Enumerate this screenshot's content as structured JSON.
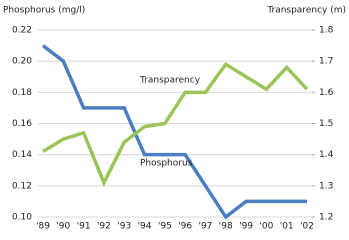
{
  "chart_data": {
    "type": "line",
    "y_label": "Phosphorus (mg/l)",
    "y2_label": "Transparency (m)",
    "categories": [
      "'89",
      "'90",
      "'91",
      "'92",
      "'93",
      "'94",
      "'95",
      "'96",
      "'97",
      "'98",
      "'99",
      "'00",
      "'01",
      "'02"
    ],
    "series": [
      {
        "name": "Phosphorus",
        "color": "#4a7fc1",
        "values": [
          0.21,
          0.2,
          0.17,
          0.17,
          0.17,
          0.14,
          0.14,
          0.14,
          0.12,
          0.1,
          0.11,
          0.11,
          0.11,
          0.11
        ]
      },
      {
        "name": "Transparency",
        "color": "#9bc45a",
        "axis": "y2",
        "values": [
          1.41,
          1.45,
          1.47,
          1.31,
          1.44,
          1.49,
          1.5,
          1.6,
          1.6,
          1.69,
          1.65,
          1.61,
          1.68,
          1.61
        ]
      }
    ],
    "ylim": [
      0.1,
      0.22
    ],
    "yticks": [
      {
        "value": 0.1,
        "label": "0.10"
      },
      0.12,
      0.14,
      0.16,
      0.18,
      {
        "value": 0.2,
        "label": "0.20"
      },
      0.22
    ],
    "y2lim": [
      1.2,
      1.8
    ],
    "y2ticks": [
      1.2,
      1.3,
      1.4,
      1.5,
      1.6,
      1.7,
      1.8
    ],
    "grid": true
  }
}
